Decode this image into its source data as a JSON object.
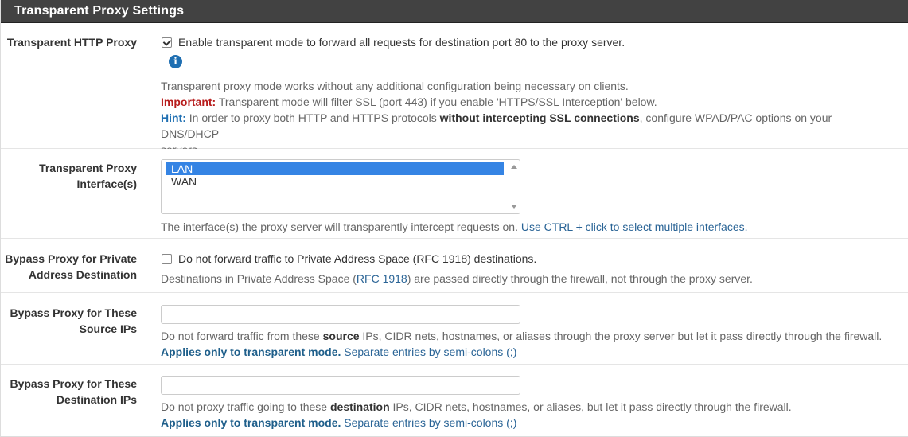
{
  "panel": {
    "title": "Transparent Proxy Settings"
  },
  "transparent_http": {
    "label": "Transparent HTTP Proxy",
    "checkbox_label": "Enable transparent mode to forward all requests for destination port 80 to the proxy server.",
    "checked": true,
    "info_icon": "info-icon",
    "help_line1": "Transparent proxy mode works without any additional configuration being necessary on clients.",
    "important_label": "Important:",
    "important_text": " Transparent mode will filter SSL (port 443) if you enable 'HTTPS/SSL Interception' below.",
    "hint_label": "Hint:",
    "hint_text_1": " In order to proxy both HTTP and HTTPS protocols ",
    "hint_strong": "without intercepting SSL connections",
    "hint_text_2": ", configure WPAD/PAC options on your DNS/DHCP",
    "hint_text_3": "servers."
  },
  "interfaces": {
    "label_line1": "Transparent Proxy",
    "label_line2": "Interface(s)",
    "options": [
      "LAN",
      "WAN"
    ],
    "selected": "LAN",
    "help_text": "The interface(s) the proxy server will transparently intercept requests on. ",
    "help_link": "Use CTRL + click to select multiple interfaces."
  },
  "bypass_private": {
    "label_line1": "Bypass Proxy for Private",
    "label_line2": "Address Destination",
    "checkbox_label": "Do not forward traffic to Private Address Space (RFC 1918) destinations.",
    "checked": false,
    "help_text_1": "Destinations in Private Address Space (",
    "help_link": "RFC 1918",
    "help_text_2": ") are passed directly through the firewall, not through the proxy server."
  },
  "bypass_source": {
    "label_line1": "Bypass Proxy for These",
    "label_line2": "Source IPs",
    "value": "",
    "help_text_1": "Do not forward traffic from these ",
    "help_strong": "source",
    "help_text_2": " IPs, CIDR nets, hostnames, or aliases through the proxy server but let it pass directly through the firewall.",
    "applies_label": "Applies only to transparent mode.",
    "applies_text": " Separate entries by semi-colons (;)"
  },
  "bypass_dest": {
    "label_line1": "Bypass Proxy for These",
    "label_line2": "Destination IPs",
    "value": "",
    "help_text_1": "Do not proxy traffic going to these ",
    "help_strong": "destination",
    "help_text_2": " IPs, CIDR nets, hostnames, or aliases, but let it pass directly through the firewall.",
    "applies_label": "Applies only to transparent mode.",
    "applies_text": " Separate entries by semi-colons (;)"
  }
}
